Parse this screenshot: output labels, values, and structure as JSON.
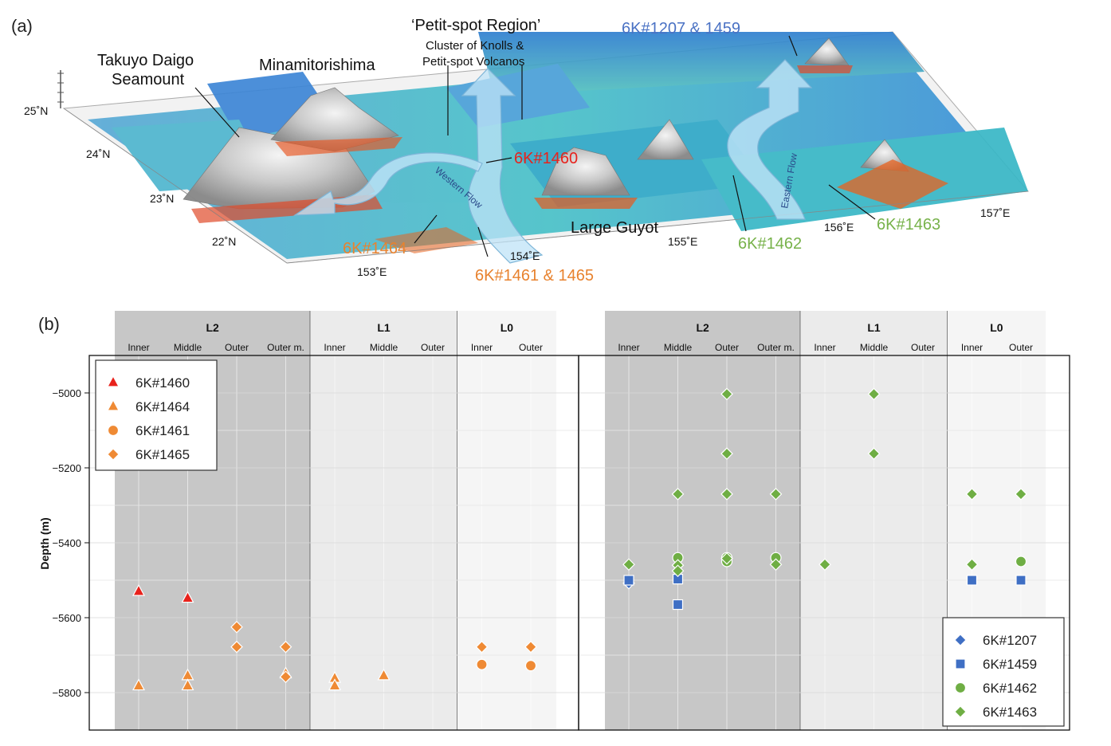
{
  "panel_a": {
    "label": "(a)",
    "region_title": "‘Petit-spot Region’",
    "region_subtitle_1": "Cluster of Knolls &",
    "region_subtitle_2": "Petit-spot Volcanos",
    "takuyo_1": "Takuyo Daigo",
    "takuyo_2": "Seamount",
    "minamitorishima": "Minamitorishima",
    "large_guyot": "Large Guyot",
    "western_flow": "Western Flow",
    "eastern_flow": "Eastern Flow",
    "lat_labels": [
      "25˚N",
      "24˚N",
      "23˚N",
      "22˚N"
    ],
    "lon_labels": [
      "153˚E",
      "154˚E",
      "155˚E",
      "156˚E",
      "157˚E"
    ],
    "dives": {
      "d1207_1459": "6K#1207 & 1459",
      "d1460": "6K#1460",
      "d1464": "6K#1464",
      "d1461_1465": "6K#1461 & 1465",
      "d1462": "6K#1462",
      "d1463": "6K#1463"
    },
    "colors": {
      "blue_dive": "#4a72c4",
      "red_dive": "#e8221c",
      "orange_dive": "#e8822e",
      "green_dive": "#77b24a"
    }
  },
  "chart_data": [
    {
      "type": "scatter",
      "panel": "(b) left",
      "ylabel": "Depth (m)",
      "ylim": [
        -5900,
        -4900
      ],
      "yticks": [
        -5000,
        -5200,
        -5400,
        -5600,
        -5800
      ],
      "zones": [
        {
          "name": "L2",
          "categories": [
            "Inner",
            "Middle",
            "Outer",
            "Outer m."
          ],
          "shade": "#c7c7c7"
        },
        {
          "name": "L1",
          "categories": [
            "Inner",
            "Middle",
            "Outer"
          ],
          "shade": "#ebebeb"
        },
        {
          "name": "L0",
          "categories": [
            "Inner",
            "Outer"
          ],
          "shade": "#f5f5f5"
        }
      ],
      "legend": [
        {
          "name": "6K#1460",
          "marker": "triangle",
          "color": "#e8221c"
        },
        {
          "name": "6K#1464",
          "marker": "triangle",
          "color": "#ef8a34"
        },
        {
          "name": "6K#1461",
          "marker": "circle",
          "color": "#ef8a34"
        },
        {
          "name": "6K#1465",
          "marker": "diamond",
          "color": "#ef8a34"
        }
      ],
      "series": [
        {
          "name": "6K#1460",
          "points": [
            [
              0,
              -5530
            ],
            [
              1,
              -5548
            ]
          ]
        },
        {
          "name": "6K#1464",
          "points": [
            [
              0,
              -5782
            ],
            [
              1,
              -5755
            ],
            [
              1,
              -5782
            ],
            [
              3,
              -5750
            ],
            [
              4,
              -5762
            ],
            [
              4,
              -5782
            ],
            [
              5,
              -5755
            ]
          ]
        },
        {
          "name": "6K#1461",
          "points": [
            [
              7,
              -5725
            ],
            [
              8,
              -5728
            ]
          ]
        },
        {
          "name": "6K#1465",
          "points": [
            [
              2,
              -5625
            ],
            [
              2,
              -5678
            ],
            [
              3,
              -5678
            ],
            [
              3,
              -5758
            ],
            [
              7,
              -5678
            ],
            [
              8,
              -5678
            ]
          ]
        }
      ]
    },
    {
      "type": "scatter",
      "panel": "(b) right",
      "ylabel": "Depth (m)",
      "ylim": [
        -5900,
        -4900
      ],
      "yticks": [
        -5000,
        -5200,
        -5400,
        -5600,
        -5800
      ],
      "zones": [
        {
          "name": "L2",
          "categories": [
            "Inner",
            "Middle",
            "Outer",
            "Outer m."
          ],
          "shade": "#c7c7c7"
        },
        {
          "name": "L1",
          "categories": [
            "Inner",
            "Middle",
            "Outer"
          ],
          "shade": "#ebebeb"
        },
        {
          "name": "L0",
          "categories": [
            "Inner",
            "Outer"
          ],
          "shade": "#f5f5f5"
        }
      ],
      "legend": [
        {
          "name": "6K#1207",
          "marker": "diamond",
          "color": "#3f6fc4"
        },
        {
          "name": "6K#1459",
          "marker": "square",
          "color": "#3f6fc4"
        },
        {
          "name": "6K#1462",
          "marker": "circle",
          "color": "#6fae44"
        },
        {
          "name": "6K#1463",
          "marker": "diamond",
          "color": "#6fae44"
        }
      ],
      "series": [
        {
          "name": "6K#1207",
          "points": [
            [
              0,
              -5508
            ]
          ]
        },
        {
          "name": "6K#1459",
          "points": [
            [
              0,
              -5500
            ],
            [
              1,
              -5497
            ],
            [
              1,
              -5565
            ],
            [
              7,
              -5500
            ],
            [
              8,
              -5500
            ]
          ]
        },
        {
          "name": "6K#1462",
          "points": [
            [
              1,
              -5440
            ],
            [
              2,
              -5440
            ],
            [
              2,
              -5450
            ],
            [
              3,
              -5440
            ],
            [
              8,
              -5450
            ]
          ]
        },
        {
          "name": "6K#1463",
          "points": [
            [
              0,
              -5458
            ],
            [
              1,
              -5270
            ],
            [
              1,
              -5460
            ],
            [
              1,
              -5475
            ],
            [
              2,
              -5003
            ],
            [
              2,
              -5162
            ],
            [
              2,
              -5270
            ],
            [
              2,
              -5442
            ],
            [
              3,
              -5270
            ],
            [
              3,
              -5458
            ],
            [
              4,
              -5458
            ],
            [
              5,
              -5003
            ],
            [
              5,
              -5162
            ],
            [
              7,
              -5270
            ],
            [
              7,
              -5458
            ],
            [
              8,
              -5270
            ]
          ]
        }
      ]
    }
  ],
  "panel_b": {
    "label": "(b)"
  }
}
